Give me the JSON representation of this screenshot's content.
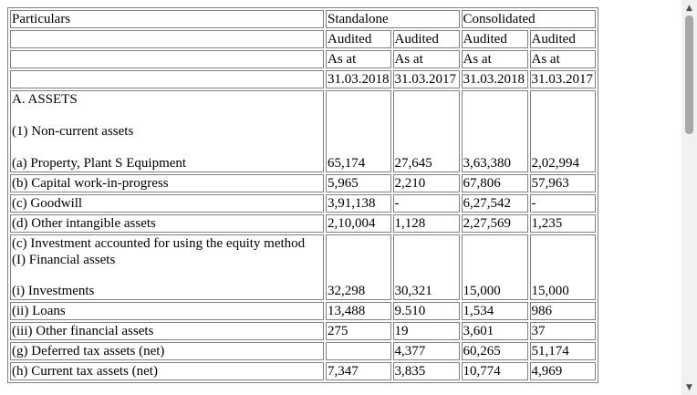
{
  "header": {
    "particulars": "Particulars",
    "standalone": "Standalone",
    "consolidated": "Consolidated",
    "audited": [
      "Audited",
      "Audited",
      "Audited",
      "Audited"
    ],
    "as_at": [
      "As at",
      "As at",
      "As at",
      "As at"
    ],
    "dates": [
      "31.03.2018",
      "31.03.2017",
      "31.03.2018",
      "31.03.2017"
    ]
  },
  "sections": {
    "assets": "A. ASSETS",
    "non_current": "(1) Non-current assets",
    "financial_assets": "(I) Financial assets"
  },
  "rows": [
    {
      "label": "(a) Property, Plant S Equipment",
      "values": [
        "65,174",
        "27,645",
        "3,63,380",
        "2,02,994"
      ]
    },
    {
      "label": "(b) Capital work-in-progress",
      "values": [
        "5,965",
        "2,210",
        "67,806",
        "57,963"
      ]
    },
    {
      "label": "(c) Goodwill",
      "values": [
        "3,91,138",
        "-",
        "6,27,542",
        "-"
      ]
    },
    {
      "label": "(d) Other intangible assets",
      "values": [
        "2,10,004",
        "1,128",
        "2,27,569",
        "1,235"
      ]
    },
    {
      "label": "(c) Investment accounted for using the equity method",
      "values": [
        "",
        "",
        "",
        ""
      ]
    },
    {
      "label": "(i) Investments",
      "values": [
        "32,298",
        "30,321",
        "15,000",
        "15,000"
      ]
    },
    {
      "label": "(ii) Loans",
      "values": [
        "13,488",
        "9.510",
        "1,534",
        "986"
      ]
    },
    {
      "label": "(iii) Other financial assets",
      "values": [
        "275",
        "19",
        "3,601",
        "37"
      ]
    },
    {
      "label": "(g) Deferred tax assets (net)",
      "values": [
        "",
        "4,377",
        "60,265",
        "51,174"
      ]
    },
    {
      "label": "(h) Current tax assets (net)",
      "values": [
        "7,347",
        "3,835",
        "10,774",
        "4,969"
      ]
    }
  ]
}
